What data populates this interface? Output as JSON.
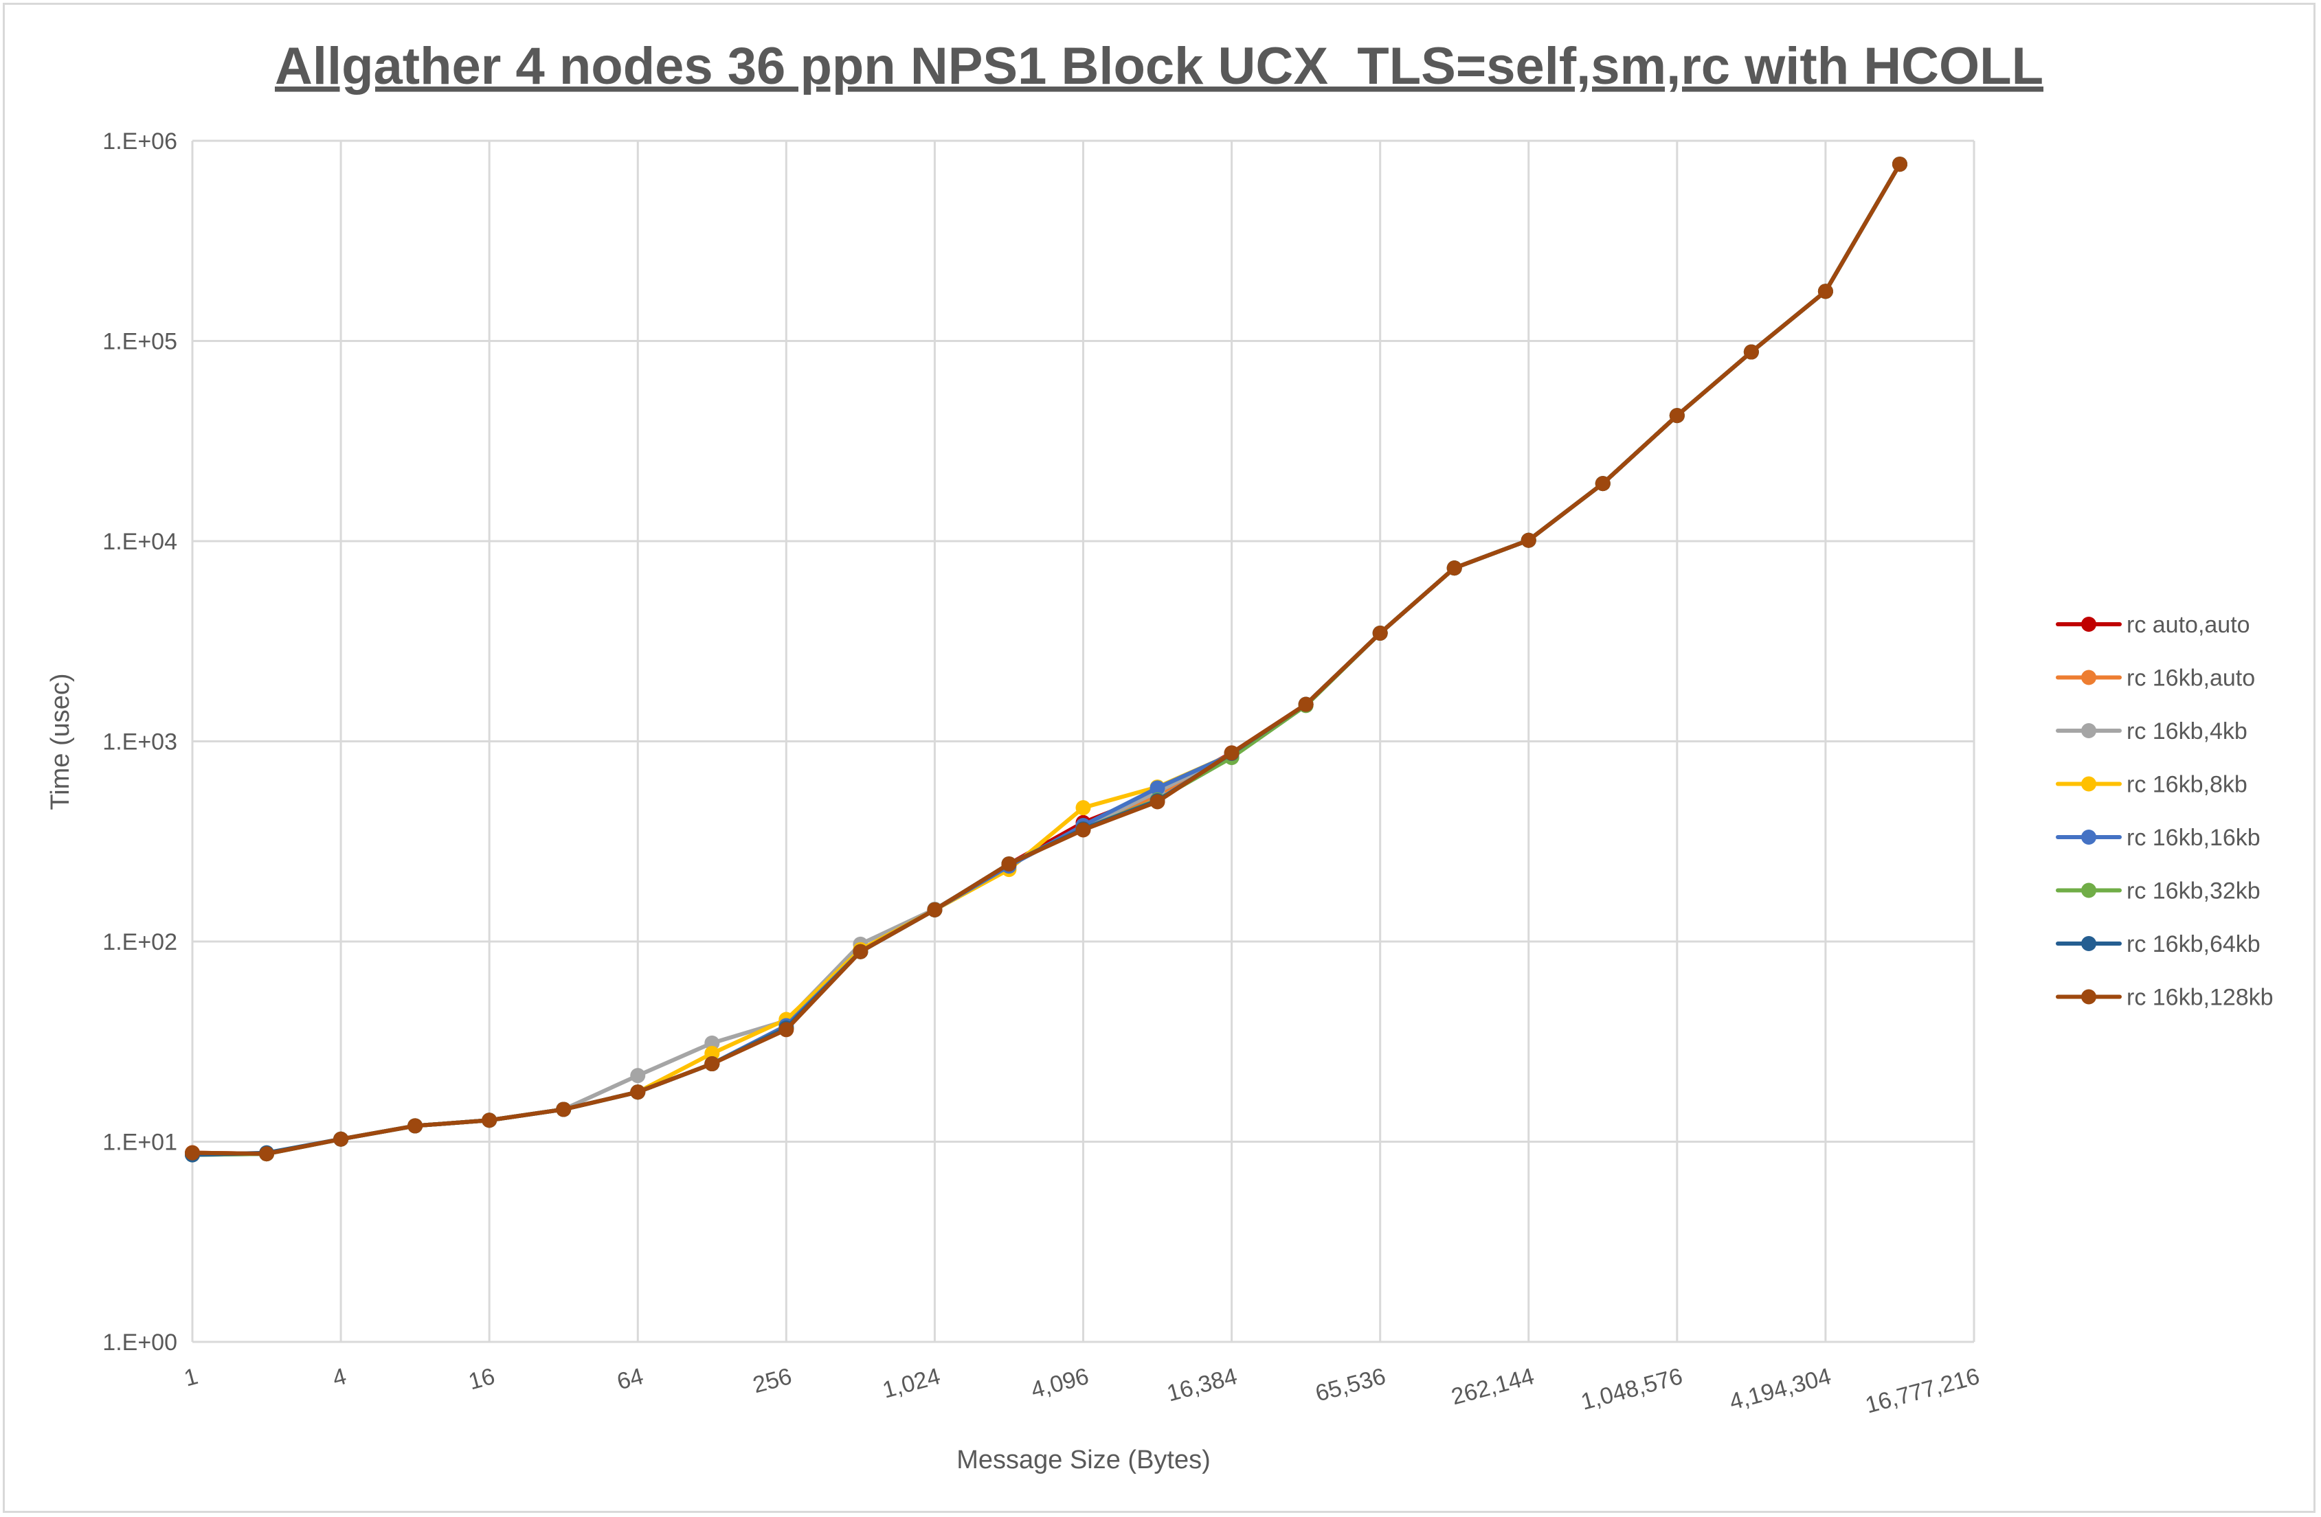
{
  "chart_data": {
    "type": "line",
    "title": "Allgather 4 nodes 36 ppn NPS1 Block UCX_TLS=self,sm,rc with HCOLL",
    "xlabel": "Message Size (Bytes)",
    "ylabel": "Time (usec)",
    "x_scale": "log2",
    "y_scale": "log10",
    "xlim": [
      1,
      16777216
    ],
    "ylim": [
      1,
      1000000
    ],
    "grid": true,
    "legend_position": "right",
    "x_tick_labels": [
      "1",
      "4",
      "16",
      "64",
      "256",
      "1,024",
      "4,096",
      "16,384",
      "65,536",
      "262,144",
      "1,048,576",
      "4,194,304",
      "16,777,216"
    ],
    "y_tick_labels": [
      "1.E+00",
      "1.E+01",
      "1.E+02",
      "1.E+03",
      "1.E+04",
      "1.E+05",
      "1.E+06"
    ],
    "x": [
      1,
      2,
      4,
      8,
      16,
      32,
      64,
      128,
      256,
      512,
      1024,
      2048,
      4096,
      8192,
      16384,
      32768,
      65536,
      131072,
      262144,
      524288,
      1048576,
      2097152,
      4194304,
      8388608
    ],
    "series": [
      {
        "name": "rc auto,auto",
        "color": "#c00000",
        "values": [
          8.8,
          8.7,
          10.3,
          12.0,
          12.8,
          14.5,
          17.7,
          24.5,
          37,
          89,
          144,
          244,
          393,
          552,
          875,
          1530,
          3470,
          7340,
          10100,
          19400,
          42400,
          88100,
          177000,
          764000
        ]
      },
      {
        "name": "rc 16kb,auto",
        "color": "#ed7d31",
        "values": [
          8.8,
          8.7,
          10.3,
          12.0,
          12.8,
          14.5,
          17.7,
          24.5,
          37,
          89,
          144,
          244,
          370,
          540,
          870,
          1530,
          3470,
          7340,
          10100,
          19400,
          42400,
          88100,
          177000,
          764000
        ]
      },
      {
        "name": "rc 16kb,4kb",
        "color": "#a5a5a5",
        "values": [
          8.7,
          8.7,
          10.3,
          12.0,
          12.8,
          14.5,
          21.4,
          31.1,
          40.2,
          97,
          145,
          240,
          370,
          560,
          860,
          1530,
          3470,
          7340,
          10100,
          19400,
          42400,
          88100,
          177000,
          764000
        ]
      },
      {
        "name": "rc 16kb,8kb",
        "color": "#ffc000",
        "values": [
          8.7,
          8.7,
          10.3,
          12.0,
          12.8,
          14.5,
          17.7,
          27.6,
          40.8,
          91,
          144,
          229,
          466,
          591,
          860,
          1530,
          3470,
          7340,
          10100,
          19400,
          42400,
          88100,
          177000,
          764000
        ]
      },
      {
        "name": "rc 16kb,16kb",
        "color": "#4472c4",
        "values": [
          8.6,
          8.7,
          10.3,
          12.0,
          12.8,
          14.5,
          17.7,
          24.5,
          38,
          89,
          144,
          238,
          380,
          585,
          860,
          1530,
          3470,
          7340,
          10100,
          19400,
          42400,
          88100,
          177000,
          764000
        ]
      },
      {
        "name": "rc 16kb,32kb",
        "color": "#70ad47",
        "values": [
          8.6,
          8.7,
          10.3,
          12.0,
          12.8,
          14.5,
          17.7,
          24.5,
          37,
          89,
          144,
          244,
          365,
          510,
          830,
          1510,
          3470,
          7340,
          10100,
          19400,
          42400,
          88100,
          177000,
          764000
        ]
      },
      {
        "name": "rc 16kb,64kb",
        "color": "#255e91",
        "values": [
          8.6,
          8.8,
          10.3,
          12.0,
          12.8,
          14.5,
          17.7,
          24.5,
          37,
          89,
          144,
          244,
          365,
          505,
          870,
          1530,
          3470,
          7340,
          10100,
          19400,
          42400,
          88100,
          177000,
          764000
        ]
      },
      {
        "name": "rc 16kb,128kb",
        "color": "#9e480e",
        "values": [
          8.8,
          8.7,
          10.3,
          12.0,
          12.8,
          14.5,
          17.7,
          24.5,
          36.3,
          89,
          144,
          244,
          361,
          499,
          875,
          1530,
          3470,
          7340,
          10100,
          19400,
          42400,
          88100,
          177000,
          764000
        ]
      }
    ]
  }
}
